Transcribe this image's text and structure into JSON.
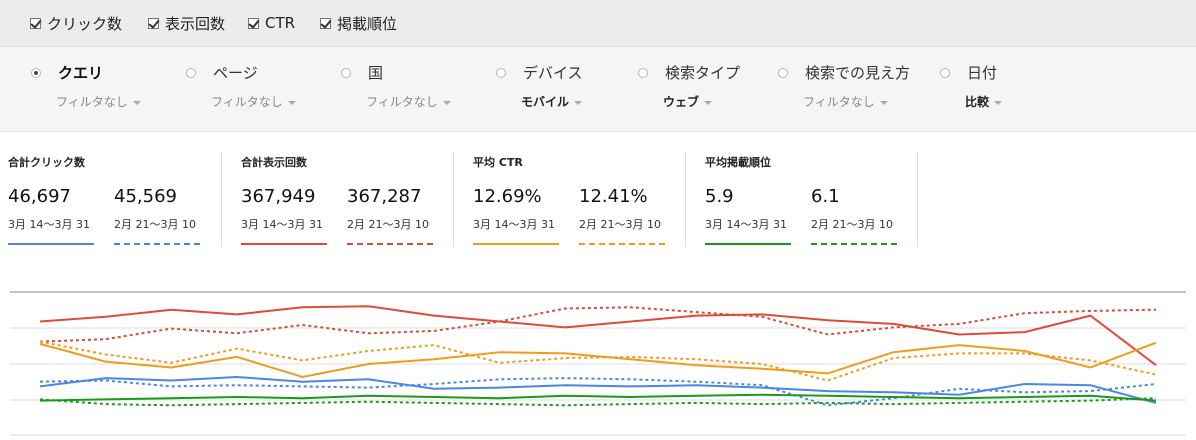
{
  "metric_toggles": [
    {
      "label": "クリック数",
      "checked": true
    },
    {
      "label": "表示回数",
      "checked": true
    },
    {
      "label": "CTR",
      "checked": true
    },
    {
      "label": "掲載順位",
      "checked": true
    }
  ],
  "dimensions": [
    {
      "label": "クエリ",
      "filter": "フィルタなし",
      "selected": true,
      "filter_bold": false
    },
    {
      "label": "ページ",
      "filter": "フィルタなし",
      "selected": false,
      "filter_bold": false
    },
    {
      "label": "国",
      "filter": "フィルタなし",
      "selected": false,
      "filter_bold": false
    },
    {
      "label": "デバイス",
      "filter": "モバイル",
      "selected": false,
      "filter_bold": true
    },
    {
      "label": "検索タイプ",
      "filter": "ウェブ",
      "selected": false,
      "filter_bold": true
    },
    {
      "label": "検索での見え方",
      "filter": "フィルタなし",
      "selected": false,
      "filter_bold": false
    },
    {
      "label": "日付",
      "filter": "比較",
      "selected": false,
      "filter_bold": true
    }
  ],
  "summary": [
    {
      "title": "合計クリック数",
      "current": {
        "value": "46,697",
        "range": "3月 14〜3月 31"
      },
      "previous": {
        "value": "45,569",
        "range": "2月 21〜3月 10"
      },
      "color": "#4a86e8"
    },
    {
      "title": "合計表示回数",
      "current": {
        "value": "367,949",
        "range": "3月 14〜3月 31"
      },
      "previous": {
        "value": "367,287",
        "range": "2月 21〜3月 10"
      },
      "color": "#dd4b39"
    },
    {
      "title": "平均 CTR",
      "current": {
        "value": "12.69%",
        "range": "3月 14〜3月 31"
      },
      "previous": {
        "value": "12.41%",
        "range": "2月 21〜3月 10"
      },
      "color": "#f09c1b"
    },
    {
      "title": "平均掲載順位",
      "current": {
        "value": "5.9",
        "range": "3月 14〜3月 31"
      },
      "previous": {
        "value": "6.1",
        "range": "2月 21〜3月 10"
      },
      "color": "#1a9a1a"
    }
  ],
  "chart_data": {
    "type": "line",
    "grid": true,
    "series": [
      {
        "metric": "clicks",
        "period": "current",
        "style": "solid",
        "color": "#4a86e8",
        "values": [
          0.8,
          0.73,
          0.75,
          0.72,
          0.76,
          0.74,
          0.82,
          0.81,
          0.79,
          0.8,
          0.79,
          0.81,
          0.84,
          0.85,
          0.87,
          0.78,
          0.79,
          0.94
        ]
      },
      {
        "metric": "clicks",
        "period": "previous",
        "style": "dotted",
        "color": "#4a86e8",
        "values": [
          0.76,
          0.75,
          0.8,
          0.79,
          0.8,
          0.81,
          0.78,
          0.74,
          0.73,
          0.74,
          0.76,
          0.79,
          0.96,
          0.9,
          0.82,
          0.85,
          0.84,
          0.78
        ]
      },
      {
        "metric": "impressions",
        "period": "current",
        "style": "solid",
        "color": "#dd4b39",
        "values": [
          0.25,
          0.21,
          0.15,
          0.19,
          0.13,
          0.12,
          0.2,
          0.25,
          0.3,
          0.25,
          0.2,
          0.19,
          0.24,
          0.27,
          0.36,
          0.34,
          0.2,
          0.62
        ]
      },
      {
        "metric": "impressions",
        "period": "previous",
        "style": "dotted",
        "color": "#dd4b39",
        "values": [
          0.42,
          0.4,
          0.31,
          0.35,
          0.28,
          0.35,
          0.33,
          0.25,
          0.14,
          0.13,
          0.17,
          0.21,
          0.36,
          0.3,
          0.27,
          0.18,
          0.16,
          0.15
        ]
      },
      {
        "metric": "ctr",
        "period": "current",
        "style": "solid",
        "color": "#f09c1b",
        "values": [
          0.44,
          0.59,
          0.64,
          0.55,
          0.72,
          0.61,
          0.57,
          0.51,
          0.52,
          0.57,
          0.62,
          0.65,
          0.69,
          0.51,
          0.45,
          0.5,
          0.64,
          0.43
        ]
      },
      {
        "metric": "ctr",
        "period": "previous",
        "style": "dotted",
        "color": "#f09c1b",
        "values": [
          0.42,
          0.53,
          0.6,
          0.48,
          0.58,
          0.5,
          0.45,
          0.6,
          0.56,
          0.55,
          0.57,
          0.61,
          0.75,
          0.56,
          0.52,
          0.52,
          0.58,
          0.7
        ]
      },
      {
        "metric": "position",
        "period": "current",
        "style": "solid",
        "color": "#1a9a1a",
        "values": [
          0.92,
          0.91,
          0.9,
          0.89,
          0.9,
          0.88,
          0.89,
          0.9,
          0.88,
          0.89,
          0.88,
          0.87,
          0.88,
          0.89,
          0.9,
          0.89,
          0.88,
          0.92
        ]
      },
      {
        "metric": "position",
        "period": "previous",
        "style": "dotted",
        "color": "#1a9a1a",
        "values": [
          0.91,
          0.95,
          0.96,
          0.95,
          0.94,
          0.93,
          0.94,
          0.95,
          0.96,
          0.95,
          0.94,
          0.95,
          0.94,
          0.95,
          0.94,
          0.93,
          0.92,
          0.9
        ]
      }
    ]
  }
}
